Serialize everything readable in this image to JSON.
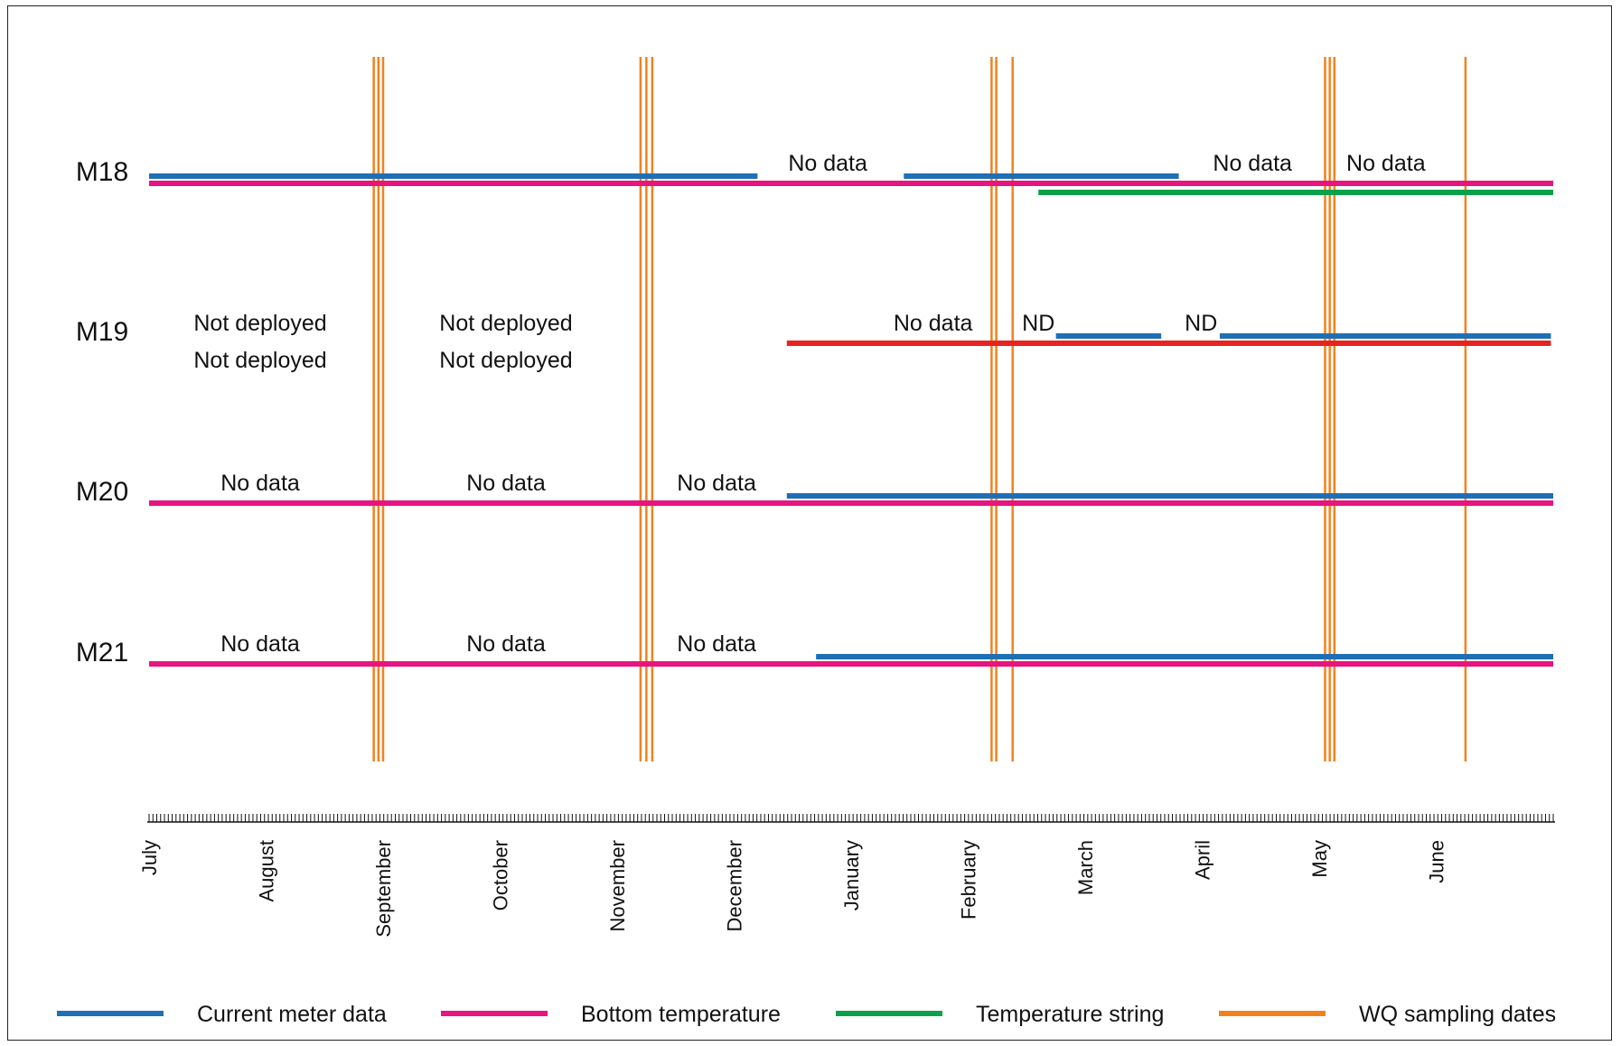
{
  "chart_data": {
    "type": "gantt",
    "months": [
      "July",
      "August",
      "September",
      "October",
      "November",
      "December",
      "January",
      "February",
      "March",
      "April",
      "May",
      "June"
    ],
    "rows": [
      "M18",
      "M19",
      "M20",
      "M21"
    ],
    "series": [
      {
        "name": "Current meter data",
        "color": "#1f6fb5",
        "segments": [
          {
            "row": "M18",
            "start": 0,
            "end": 5.2
          },
          {
            "row": "M18",
            "start": 6.45,
            "end": 8.8
          },
          {
            "row": "M19",
            "start": 7.75,
            "end": 8.65
          },
          {
            "row": "M19",
            "start": 9.15,
            "end": 11.98
          },
          {
            "row": "M20",
            "start": 5.45,
            "end": 12.0
          },
          {
            "row": "M21",
            "start": 5.7,
            "end": 12.0
          }
        ]
      },
      {
        "name": "Bottom temperature",
        "color": "#e6157f",
        "segments": [
          {
            "row": "M18",
            "start": 0,
            "end": 12.0
          },
          {
            "row": "M20",
            "start": 0,
            "end": 12.0
          },
          {
            "row": "M21",
            "start": 0,
            "end": 12.0
          }
        ]
      },
      {
        "name": "Temperature string",
        "color": "#0aa14b",
        "segments": [
          {
            "row": "M18",
            "start": 7.6,
            "end": 12.0
          }
        ]
      },
      {
        "name": "",
        "color": "#e8231f",
        "segments": [
          {
            "row": "M19",
            "start": 5.45,
            "end": 11.98
          }
        ]
      }
    ],
    "wq_sampling_dates": {
      "name": "WQ sampling dates",
      "color": "#f0821e",
      "months": [
        1.92,
        1.96,
        2.0,
        4.2,
        4.25,
        4.3,
        7.2,
        7.24,
        7.38,
        10.05,
        10.09,
        10.13,
        11.25
      ]
    },
    "annotations": [
      {
        "row": "M18",
        "text": "No data",
        "month": 5.8,
        "pos": "top"
      },
      {
        "row": "M18",
        "text": "No data",
        "month": 9.43,
        "pos": "top"
      },
      {
        "row": "M18",
        "text": "No data",
        "month": 10.57,
        "pos": "top"
      },
      {
        "row": "M19",
        "text": "Not deployed",
        "month": 0.95,
        "pos": "top"
      },
      {
        "row": "M19",
        "text": "Not deployed",
        "month": 0.95,
        "pos": "bottom"
      },
      {
        "row": "M19",
        "text": "Not deployed",
        "month": 3.05,
        "pos": "top"
      },
      {
        "row": "M19",
        "text": "Not deployed",
        "month": 3.05,
        "pos": "bottom"
      },
      {
        "row": "M19",
        "text": "No data",
        "month": 6.7,
        "pos": "top"
      },
      {
        "row": "M19",
        "text": "ND",
        "month": 7.6,
        "pos": "top"
      },
      {
        "row": "M19",
        "text": "ND",
        "month": 8.99,
        "pos": "top"
      },
      {
        "row": "M20",
        "text": "No data",
        "month": 0.95,
        "pos": "top"
      },
      {
        "row": "M20",
        "text": "No data",
        "month": 3.05,
        "pos": "top"
      },
      {
        "row": "M20",
        "text": "No data",
        "month": 4.85,
        "pos": "top"
      },
      {
        "row": "M21",
        "text": "No data",
        "month": 0.95,
        "pos": "top"
      },
      {
        "row": "M21",
        "text": "No data",
        "month": 3.05,
        "pos": "top"
      },
      {
        "row": "M21",
        "text": "No data",
        "month": 4.85,
        "pos": "top"
      }
    ],
    "legend": {
      "placement": "bottom",
      "items": [
        {
          "label": "Current meter data",
          "color": "#1f6fb5"
        },
        {
          "label": "Bottom temperature",
          "color": "#e6157f"
        },
        {
          "label": "Temperature string",
          "color": "#0aa14b"
        },
        {
          "label": "WQ sampling dates",
          "color": "#f0821e"
        }
      ]
    }
  }
}
